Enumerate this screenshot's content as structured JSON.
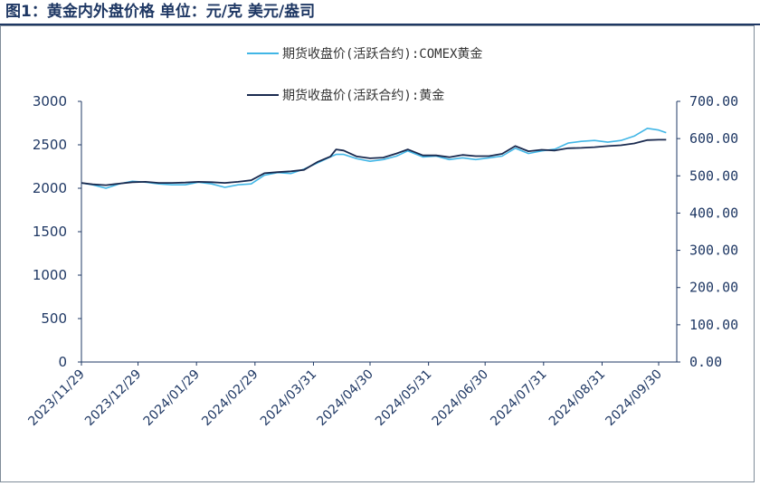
{
  "title": "图1：黄金内外盘价格 单位：元/克 美元/盎司",
  "colors": {
    "comex": "#41b6e6",
    "domestic": "#1a2a4f",
    "axis": "#1f3864"
  },
  "chart_data": {
    "type": "line",
    "title": "",
    "left_axis": {
      "min": 0,
      "max": 3000,
      "ticks": [
        "0",
        "500",
        "1000",
        "1500",
        "2000",
        "2500",
        "3000"
      ]
    },
    "right_axis": {
      "min": 0,
      "max": 700,
      "ticks": [
        "0.00",
        "100.00",
        "200.00",
        "300.00",
        "400.00",
        "500.00",
        "600.00",
        "700.00"
      ]
    },
    "x_ticks": [
      "2023/11/29",
      "2023/12/29",
      "2024/01/29",
      "2024/02/29",
      "2024/03/31",
      "2024/04/30",
      "2024/05/31",
      "2024/06/30",
      "2024/07/31",
      "2024/08/31",
      "2024/09/30"
    ],
    "legend_placement": "top-center",
    "series": [
      {
        "name": "期货收盘价(活跃合约):COMEX黄金",
        "axis": "left",
        "x": [
          "2023/11/29",
          "2023/12/05",
          "2023/12/12",
          "2023/12/19",
          "2023/12/26",
          "2024/01/02",
          "2024/01/09",
          "2024/01/16",
          "2024/01/23",
          "2024/01/30",
          "2024/02/06",
          "2024/02/13",
          "2024/02/20",
          "2024/02/27",
          "2024/03/05",
          "2024/03/12",
          "2024/03/19",
          "2024/03/26",
          "2024/04/02",
          "2024/04/09",
          "2024/04/12",
          "2024/04/16",
          "2024/04/23",
          "2024/04/30",
          "2024/05/07",
          "2024/05/14",
          "2024/05/20",
          "2024/05/28",
          "2024/06/04",
          "2024/06/11",
          "2024/06/18",
          "2024/06/25",
          "2024/07/02",
          "2024/07/09",
          "2024/07/16",
          "2024/07/23",
          "2024/07/30",
          "2024/08/06",
          "2024/08/13",
          "2024/08/20",
          "2024/08/27",
          "2024/09/03",
          "2024/09/10",
          "2024/09/17",
          "2024/09/24",
          "2024/09/30",
          "2024/10/04"
        ],
        "values": [
          2060,
          2040,
          2000,
          2050,
          2080,
          2070,
          2050,
          2040,
          2040,
          2070,
          2050,
          2010,
          2040,
          2050,
          2150,
          2180,
          2170,
          2220,
          2290,
          2360,
          2390,
          2390,
          2340,
          2310,
          2330,
          2370,
          2430,
          2360,
          2370,
          2330,
          2350,
          2330,
          2350,
          2370,
          2460,
          2400,
          2430,
          2450,
          2520,
          2540,
          2550,
          2530,
          2550,
          2600,
          2690,
          2670,
          2640
        ]
      },
      {
        "name": "期货收盘价(活跃合约):黄金",
        "axis": "right",
        "x": [
          "2023/11/29",
          "2023/12/05",
          "2023/12/12",
          "2023/12/19",
          "2023/12/26",
          "2024/01/02",
          "2024/01/09",
          "2024/01/16",
          "2024/01/23",
          "2024/01/30",
          "2024/02/06",
          "2024/02/13",
          "2024/02/20",
          "2024/02/27",
          "2024/03/05",
          "2024/03/12",
          "2024/03/19",
          "2024/03/26",
          "2024/04/02",
          "2024/04/09",
          "2024/04/12",
          "2024/04/16",
          "2024/04/23",
          "2024/04/30",
          "2024/05/07",
          "2024/05/14",
          "2024/05/20",
          "2024/05/28",
          "2024/06/04",
          "2024/06/11",
          "2024/06/18",
          "2024/06/25",
          "2024/07/02",
          "2024/07/09",
          "2024/07/16",
          "2024/07/23",
          "2024/07/30",
          "2024/08/06",
          "2024/08/13",
          "2024/08/20",
          "2024/08/27",
          "2024/09/03",
          "2024/09/10",
          "2024/09/17",
          "2024/09/24",
          "2024/09/30",
          "2024/10/04"
        ],
        "values": [
          481,
          477,
          475,
          479,
          483,
          484,
          481,
          481,
          482,
          484,
          483,
          481,
          484,
          488,
          507,
          510,
          512,
          516,
          537,
          552,
          571,
          568,
          552,
          547,
          549,
          560,
          571,
          555,
          555,
          550,
          556,
          553,
          553,
          559,
          580,
          566,
          570,
          568,
          574,
          575,
          577,
          580,
          582,
          587,
          596,
          597,
          597
        ]
      }
    ]
  }
}
